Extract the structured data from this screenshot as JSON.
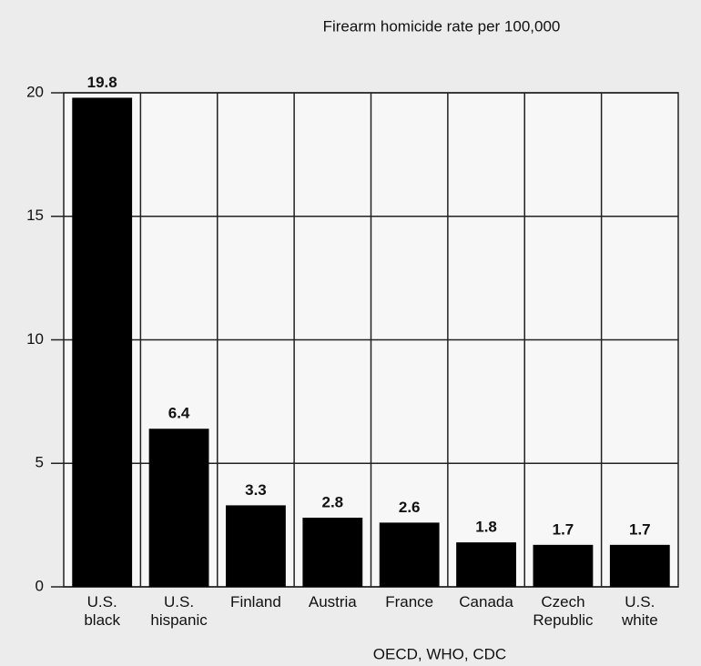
{
  "chart_data": {
    "type": "bar",
    "title": "Firearm homicide rate per 100,000",
    "source": "OECD, WHO, CDC",
    "categories": [
      "U.S. black",
      "U.S. hispanic",
      "Finland",
      "Austria",
      "France",
      "Canada",
      "Czech Republic",
      "U.S. white"
    ],
    "values": [
      19.8,
      6.4,
      3.3,
      2.8,
      2.6,
      1.8,
      1.7,
      1.7
    ],
    "color": "#000000",
    "ylim": [
      0,
      20
    ],
    "yticks": [
      0,
      5,
      10,
      15,
      20
    ],
    "grid": true
  }
}
